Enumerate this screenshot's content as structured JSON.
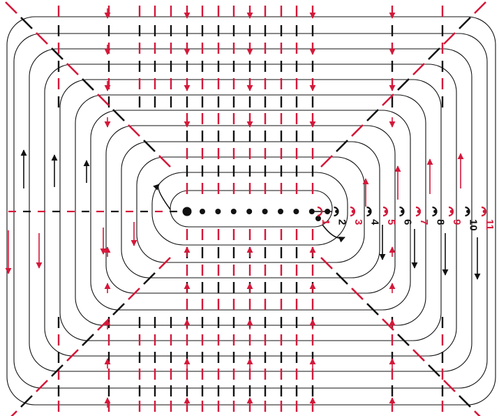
{
  "colors": {
    "red": "#d4183a",
    "black": "#111111",
    "background": "#ffffff"
  },
  "rounds": [
    {
      "label": "1",
      "color": "red"
    },
    {
      "label": "2",
      "color": "black"
    },
    {
      "label": "3",
      "color": "red"
    },
    {
      "label": "4",
      "color": "black"
    },
    {
      "label": "5",
      "color": "red"
    },
    {
      "label": "6",
      "color": "black"
    },
    {
      "label": "7",
      "color": "red"
    },
    {
      "label": "8",
      "color": "black"
    },
    {
      "label": "9",
      "color": "red"
    },
    {
      "label": "10",
      "color": "black"
    },
    {
      "label": "11",
      "color": "red"
    }
  ],
  "foundation_chain_count": 9,
  "chart_type": "crochet stitch diagram"
}
